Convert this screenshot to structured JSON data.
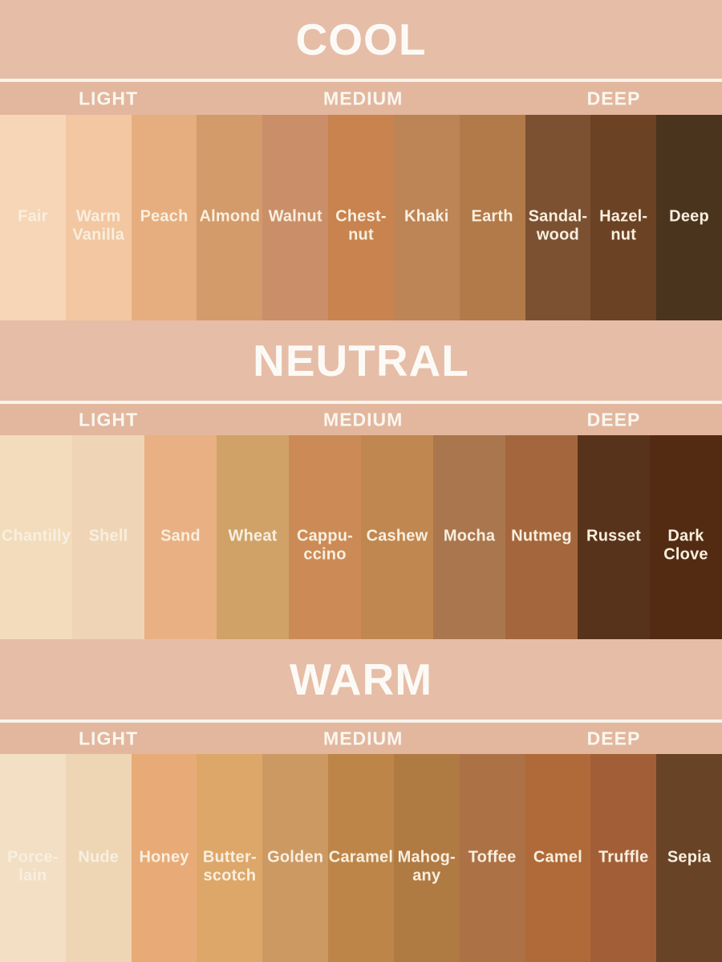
{
  "page": {
    "background_color": "#e5bca4",
    "divider_color": "#f7f3ec",
    "title_color": "#fcfaf6",
    "label_color": "#f8efdf"
  },
  "sections": [
    {
      "title": "COOL",
      "subheaders": [
        "LIGHT",
        "MEDIUM",
        "DEEP"
      ],
      "swatches": [
        {
          "label": "Fair",
          "color": "#f7d6b8"
        },
        {
          "label": "Warm\nVanilla",
          "color": "#f2c7a1"
        },
        {
          "label": "Peach",
          "color": "#e6ae7e"
        },
        {
          "label": "Almond",
          "color": "#d39a6a"
        },
        {
          "label": "Walnut",
          "color": "#ca8f68"
        },
        {
          "label": "Chest-\nnut",
          "color": "#c8834f"
        },
        {
          "label": "Khaki",
          "color": "#bd8456"
        },
        {
          "label": "Earth",
          "color": "#b27949"
        },
        {
          "label": "Sandal-\nwood",
          "color": "#7b5132"
        },
        {
          "label": "Hazel-\nnut",
          "color": "#6b4224"
        },
        {
          "label": "Deep",
          "color": "#4b341e"
        }
      ]
    },
    {
      "title": "NEUTRAL",
      "subheaders": [
        "LIGHT",
        "MEDIUM",
        "DEEP"
      ],
      "swatches": [
        {
          "label": "Chantilly",
          "color": "#f3dcbc"
        },
        {
          "label": "Shell",
          "color": "#efd5b6"
        },
        {
          "label": "Sand",
          "color": "#e9b083"
        },
        {
          "label": "Wheat",
          "color": "#d0a268"
        },
        {
          "label": "Cappu-\nccino",
          "color": "#cc8b56"
        },
        {
          "label": "Cashew",
          "color": "#c08750"
        },
        {
          "label": "Mocha",
          "color": "#aa764e"
        },
        {
          "label": "Nutmeg",
          "color": "#a4663c"
        },
        {
          "label": "Russet",
          "color": "#58331b"
        },
        {
          "label": "Dark\nClove",
          "color": "#522b12"
        }
      ]
    },
    {
      "title": "WARM",
      "subheaders": [
        "LIGHT",
        "MEDIUM",
        "DEEP"
      ],
      "swatches": [
        {
          "label": "Porce-\nlain",
          "color": "#f2dfc4"
        },
        {
          "label": "Nude",
          "color": "#eed6b5"
        },
        {
          "label": "Honey",
          "color": "#e8ab77"
        },
        {
          "label": "Butter-\nscotch",
          "color": "#dda769"
        },
        {
          "label": "Golden",
          "color": "#cd9963"
        },
        {
          "label": "Caramel",
          "color": "#bd8648"
        },
        {
          "label": "Mahog-\nany",
          "color": "#b07a43"
        },
        {
          "label": "Toffee",
          "color": "#ad7146"
        },
        {
          "label": "Camel",
          "color": "#b06a39"
        },
        {
          "label": "Truffle",
          "color": "#a25f37"
        },
        {
          "label": "Sepia",
          "color": "#684326"
        }
      ]
    }
  ],
  "chart_data": {
    "type": "table",
    "groups": [
      {
        "group": "COOL",
        "columns": [
          "LIGHT",
          "MEDIUM",
          "DEEP"
        ],
        "shades": [
          {
            "name": "Fair",
            "hex": "#f7d6b8"
          },
          {
            "name": "Warm Vanilla",
            "hex": "#f2c7a1"
          },
          {
            "name": "Peach",
            "hex": "#e6ae7e"
          },
          {
            "name": "Almond",
            "hex": "#d39a6a"
          },
          {
            "name": "Walnut",
            "hex": "#ca8f68"
          },
          {
            "name": "Chestnut",
            "hex": "#c8834f"
          },
          {
            "name": "Khaki",
            "hex": "#bd8456"
          },
          {
            "name": "Earth",
            "hex": "#b27949"
          },
          {
            "name": "Sandalwood",
            "hex": "#7b5132"
          },
          {
            "name": "Hazelnut",
            "hex": "#6b4224"
          },
          {
            "name": "Deep",
            "hex": "#4b341e"
          }
        ]
      },
      {
        "group": "NEUTRAL",
        "columns": [
          "LIGHT",
          "MEDIUM",
          "DEEP"
        ],
        "shades": [
          {
            "name": "Chantilly",
            "hex": "#f3dcbc"
          },
          {
            "name": "Shell",
            "hex": "#efd5b6"
          },
          {
            "name": "Sand",
            "hex": "#e9b083"
          },
          {
            "name": "Wheat",
            "hex": "#d0a268"
          },
          {
            "name": "Cappuccino",
            "hex": "#cc8b56"
          },
          {
            "name": "Cashew",
            "hex": "#c08750"
          },
          {
            "name": "Mocha",
            "hex": "#aa764e"
          },
          {
            "name": "Nutmeg",
            "hex": "#a4663c"
          },
          {
            "name": "Russet",
            "hex": "#58331b"
          },
          {
            "name": "Dark Clove",
            "hex": "#522b12"
          }
        ]
      },
      {
        "group": "WARM",
        "columns": [
          "LIGHT",
          "MEDIUM",
          "DEEP"
        ],
        "shades": [
          {
            "name": "Porcelain",
            "hex": "#f2dfc4"
          },
          {
            "name": "Nude",
            "hex": "#eed6b5"
          },
          {
            "name": "Honey",
            "hex": "#e8ab77"
          },
          {
            "name": "Butterscotch",
            "hex": "#dda769"
          },
          {
            "name": "Golden",
            "hex": "#cd9963"
          },
          {
            "name": "Caramel",
            "hex": "#bd8648"
          },
          {
            "name": "Mahogany",
            "hex": "#b07a43"
          },
          {
            "name": "Toffee",
            "hex": "#ad7146"
          },
          {
            "name": "Camel",
            "hex": "#b06a39"
          },
          {
            "name": "Truffle",
            "hex": "#a25f37"
          },
          {
            "name": "Sepia",
            "hex": "#684326"
          }
        ]
      }
    ]
  }
}
